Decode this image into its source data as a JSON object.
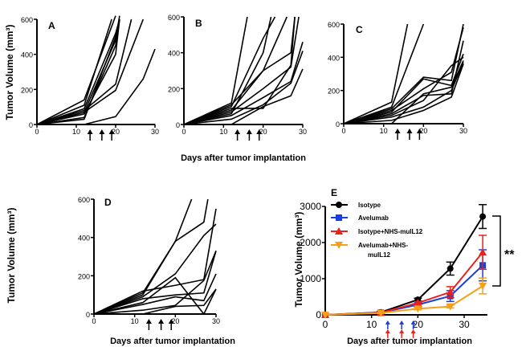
{
  "chart_data": [
    {
      "type": "line",
      "panel": "A",
      "ylabel": "Tumor Volume (mm³)",
      "xlabel": "",
      "xlim": [
        0,
        30
      ],
      "ylim": [
        0,
        600
      ],
      "xticks": [
        0,
        10,
        20,
        30
      ],
      "yticks": [
        0,
        200,
        400,
        600
      ],
      "treatment_days": [
        13.5,
        16.5,
        19
      ],
      "series": [
        [
          [
            0,
            0
          ],
          [
            12,
            140
          ],
          [
            20,
            620
          ]
        ],
        [
          [
            0,
            0
          ],
          [
            12,
            110
          ],
          [
            19,
            600
          ]
        ],
        [
          [
            0,
            0
          ],
          [
            12,
            90
          ],
          [
            20,
            520
          ],
          [
            21,
            600
          ]
        ],
        [
          [
            0,
            0
          ],
          [
            12,
            70
          ],
          [
            20,
            480
          ],
          [
            21,
            620
          ]
        ],
        [
          [
            0,
            0
          ],
          [
            12,
            60
          ],
          [
            20,
            400
          ],
          [
            21,
            600
          ]
        ],
        [
          [
            0,
            0
          ],
          [
            12,
            80
          ],
          [
            20,
            230
          ],
          [
            24,
            600
          ]
        ],
        [
          [
            0,
            0
          ],
          [
            12,
            70
          ],
          [
            20,
            195
          ],
          [
            27,
            600
          ]
        ],
        [
          [
            0,
            0
          ],
          [
            12,
            40
          ],
          [
            20,
            450
          ],
          [
            21,
            600
          ]
        ],
        [
          [
            0,
            0
          ],
          [
            12,
            0
          ],
          [
            20,
            45
          ],
          [
            27,
            260
          ],
          [
            30,
            430
          ]
        ],
        [
          [
            0,
            0
          ],
          [
            12,
            30
          ],
          [
            20,
            500
          ],
          [
            21,
            600
          ]
        ]
      ]
    },
    {
      "type": "line",
      "panel": "B",
      "ylabel": "",
      "xlabel": "Days after tumor implantation",
      "xlim": [
        0,
        30
      ],
      "ylim": [
        0,
        600
      ],
      "xticks": [
        0,
        10,
        20,
        30
      ],
      "yticks": [
        0,
        200,
        400,
        600
      ],
      "treatment_days": [
        13.5,
        16.5,
        19
      ],
      "series": [
        [
          [
            0,
            0
          ],
          [
            12,
            120
          ],
          [
            16,
            600
          ]
        ],
        [
          [
            0,
            0
          ],
          [
            12,
            100
          ],
          [
            20,
            480
          ],
          [
            23,
            600
          ]
        ],
        [
          [
            0,
            0
          ],
          [
            12,
            80
          ],
          [
            20,
            300
          ],
          [
            26,
            600
          ]
        ],
        [
          [
            0,
            0
          ],
          [
            12,
            60
          ],
          [
            20,
            400
          ],
          [
            22,
            600
          ]
        ],
        [
          [
            0,
            0
          ],
          [
            12,
            110
          ],
          [
            20,
            300
          ],
          [
            27,
            400
          ],
          [
            28,
            600
          ]
        ],
        [
          [
            0,
            0
          ],
          [
            12,
            90
          ],
          [
            20,
            90
          ],
          [
            27,
            330
          ],
          [
            28,
            600
          ]
        ],
        [
          [
            0,
            0
          ],
          [
            12,
            50
          ],
          [
            20,
            150
          ],
          [
            27,
            240
          ],
          [
            30,
            460
          ]
        ],
        [
          [
            0,
            0
          ],
          [
            12,
            30
          ],
          [
            20,
            110
          ],
          [
            27,
            230
          ],
          [
            30,
            410
          ]
        ],
        [
          [
            0,
            0
          ],
          [
            12,
            0
          ],
          [
            20,
            100
          ],
          [
            27,
            160
          ],
          [
            30,
            310
          ]
        ],
        [
          [
            0,
            0
          ],
          [
            12,
            70
          ],
          [
            20,
            200
          ],
          [
            27,
            320
          ],
          [
            29,
            600
          ]
        ]
      ]
    },
    {
      "type": "line",
      "panel": "C",
      "ylabel": "",
      "xlabel": "",
      "xlim": [
        0,
        30
      ],
      "ylim": [
        0,
        600
      ],
      "xticks": [
        0,
        10,
        20,
        30
      ],
      "yticks": [
        0,
        200,
        400,
        600
      ],
      "treatment_days": [
        13.5,
        16.5,
        19
      ],
      "series": [
        [
          [
            0,
            0
          ],
          [
            12,
            130
          ],
          [
            16,
            600
          ]
        ],
        [
          [
            0,
            0
          ],
          [
            12,
            100
          ],
          [
            20,
            600
          ]
        ],
        [
          [
            0,
            0
          ],
          [
            12,
            90
          ],
          [
            20,
            280
          ],
          [
            27,
            260
          ],
          [
            30,
            600
          ]
        ],
        [
          [
            0,
            0
          ],
          [
            12,
            80
          ],
          [
            20,
            210
          ],
          [
            27,
            310
          ],
          [
            30,
            580
          ]
        ],
        [
          [
            0,
            0
          ],
          [
            12,
            60
          ],
          [
            20,
            170
          ],
          [
            27,
            180
          ],
          [
            30,
            500
          ]
        ],
        [
          [
            0,
            0
          ],
          [
            12,
            50
          ],
          [
            20,
            140
          ],
          [
            27,
            350
          ],
          [
            30,
            400
          ]
        ],
        [
          [
            0,
            0
          ],
          [
            12,
            40
          ],
          [
            20,
            100
          ],
          [
            27,
            200
          ],
          [
            30,
            370
          ]
        ],
        [
          [
            0,
            0
          ],
          [
            12,
            20
          ],
          [
            20,
            80
          ],
          [
            27,
            160
          ],
          [
            30,
            360
          ]
        ],
        [
          [
            0,
            0
          ],
          [
            12,
            0
          ],
          [
            20,
            180
          ],
          [
            27,
            220
          ],
          [
            30,
            380
          ]
        ],
        [
          [
            0,
            0
          ],
          [
            12,
            70
          ],
          [
            20,
            270
          ],
          [
            27,
            230
          ],
          [
            30,
            420
          ]
        ]
      ]
    },
    {
      "type": "line",
      "panel": "D",
      "ylabel": "Tumor Volume (mm³)",
      "xlabel": "Days after tumor implantation",
      "xlim": [
        0,
        30
      ],
      "ylim": [
        0,
        600
      ],
      "xticks": [
        0,
        10,
        20,
        30
      ],
      "yticks": [
        0,
        200,
        400,
        600
      ],
      "treatment_days": [
        13.5,
        16.5,
        19
      ],
      "series": [
        [
          [
            0,
            0
          ],
          [
            12,
            100
          ],
          [
            20,
            380
          ],
          [
            24,
            600
          ]
        ],
        [
          [
            0,
            0
          ],
          [
            12,
            110
          ],
          [
            20,
            380
          ],
          [
            27,
            480
          ],
          [
            28,
            600
          ]
        ],
        [
          [
            0,
            0
          ],
          [
            12,
            90
          ],
          [
            20,
            210
          ],
          [
            27,
            410
          ],
          [
            30,
            470
          ]
        ],
        [
          [
            0,
            0
          ],
          [
            12,
            120
          ],
          [
            20,
            150
          ],
          [
            27,
            180
          ],
          [
            30,
            550
          ]
        ],
        [
          [
            0,
            0
          ],
          [
            12,
            60
          ],
          [
            20,
            190
          ],
          [
            27,
            0
          ],
          [
            30,
            130
          ]
        ],
        [
          [
            0,
            0
          ],
          [
            12,
            80
          ],
          [
            20,
            100
          ],
          [
            27,
            110
          ],
          [
            30,
            330
          ]
        ],
        [
          [
            0,
            0
          ],
          [
            12,
            50
          ],
          [
            20,
            90
          ],
          [
            27,
            70
          ],
          [
            30,
            210
          ]
        ],
        [
          [
            0,
            0
          ],
          [
            12,
            20
          ],
          [
            20,
            45
          ],
          [
            27,
            175
          ],
          [
            30,
            330
          ]
        ],
        [
          [
            0,
            0
          ],
          [
            12,
            0
          ],
          [
            20,
            40
          ],
          [
            27,
            45
          ],
          [
            30,
            130
          ]
        ]
      ]
    },
    {
      "type": "line",
      "panel": "E",
      "ylabel": "Tumor Volume (mm³)",
      "xlabel": "Days after tumor implantation",
      "xlim": [
        0,
        35
      ],
      "ylim": [
        0,
        3000
      ],
      "xticks": [
        0,
        10,
        20,
        30
      ],
      "yticks": [
        0,
        1000,
        2000,
        3000
      ],
      "treatment_days": [
        13.5,
        16.5,
        19
      ],
      "x": [
        0,
        12,
        20,
        27,
        34
      ],
      "series": [
        {
          "name": "Isotype",
          "color": "#000000",
          "marker": "circle",
          "values": [
            0,
            70,
            420,
            1280,
            2720
          ],
          "errors": [
            0,
            20,
            40,
            180,
            330
          ]
        },
        {
          "name": "Avelumab",
          "color": "#1a3fe0",
          "marker": "square",
          "values": [
            0,
            60,
            280,
            520,
            1370
          ],
          "errors": [
            0,
            15,
            50,
            150,
            430
          ]
        },
        {
          "name": "Isotype+NHS-muIL12",
          "color": "#e8231d",
          "marker": "triangle-up",
          "values": [
            0,
            60,
            330,
            630,
            1730
          ],
          "errors": [
            0,
            15,
            40,
            150,
            470
          ]
        },
        {
          "name": "Avelumab+NHS-muIL12",
          "color": "#f5a01a",
          "marker": "triangle-down",
          "values": [
            0,
            50,
            170,
            230,
            800
          ],
          "errors": [
            0,
            10,
            30,
            40,
            220
          ]
        }
      ],
      "legend_lines": [
        [
          "Isotype"
        ],
        [
          "Avelumab"
        ],
        [
          "Isotype+NHS-muIL12"
        ],
        [
          "Avelumab+NHS-",
          "muIL12"
        ]
      ],
      "annotation": "**"
    }
  ]
}
